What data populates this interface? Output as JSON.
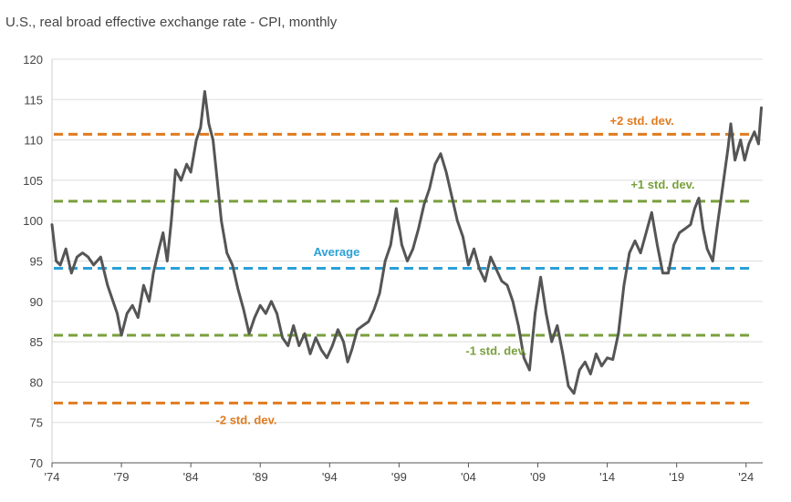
{
  "chart_data": {
    "type": "line",
    "title": "U.S., real broad effective exchange rate - CPI, monthly",
    "xlabel": "",
    "ylabel": "",
    "xlim": [
      1974,
      2025.2
    ],
    "ylim": [
      70,
      120
    ],
    "y_ticks": [
      70,
      75,
      80,
      85,
      90,
      95,
      100,
      105,
      110,
      115,
      120
    ],
    "x_ticks": [
      {
        "value": 1974,
        "label": "'74"
      },
      {
        "value": 1979,
        "label": "'79"
      },
      {
        "value": 1984,
        "label": "'84"
      },
      {
        "value": 1989,
        "label": "'89"
      },
      {
        "value": 1994,
        "label": "'94"
      },
      {
        "value": 1999,
        "label": "'99"
      },
      {
        "value": 2004,
        "label": "'04"
      },
      {
        "value": 2009,
        "label": "'09"
      },
      {
        "value": 2014,
        "label": "'14"
      },
      {
        "value": 2019,
        "label": "'19"
      },
      {
        "value": 2024,
        "label": "'24"
      }
    ],
    "grid": true,
    "series": [
      {
        "name": "Real broad effective exchange rate (CPI)",
        "color": "#555555",
        "points": [
          [
            1974.0,
            99.5
          ],
          [
            1974.3,
            95.0
          ],
          [
            1974.6,
            94.5
          ],
          [
            1975.0,
            96.5
          ],
          [
            1975.4,
            93.5
          ],
          [
            1975.8,
            95.5
          ],
          [
            1976.2,
            96.0
          ],
          [
            1976.6,
            95.5
          ],
          [
            1977.0,
            94.5
          ],
          [
            1977.5,
            95.5
          ],
          [
            1978.0,
            92.0
          ],
          [
            1978.3,
            90.5
          ],
          [
            1978.7,
            88.5
          ],
          [
            1979.0,
            85.8
          ],
          [
            1979.4,
            88.5
          ],
          [
            1979.8,
            89.5
          ],
          [
            1980.2,
            88.0
          ],
          [
            1980.6,
            92.0
          ],
          [
            1981.0,
            90.0
          ],
          [
            1981.3,
            93.5
          ],
          [
            1981.7,
            96.5
          ],
          [
            1982.0,
            98.5
          ],
          [
            1982.3,
            95.0
          ],
          [
            1982.6,
            100.0
          ],
          [
            1982.9,
            106.3
          ],
          [
            1983.3,
            105.0
          ],
          [
            1983.7,
            107.0
          ],
          [
            1984.0,
            106.0
          ],
          [
            1984.4,
            110.0
          ],
          [
            1984.7,
            111.5
          ],
          [
            1985.0,
            116.0
          ],
          [
            1985.3,
            112.0
          ],
          [
            1985.6,
            110.0
          ],
          [
            1985.9,
            105.0
          ],
          [
            1986.2,
            100.0
          ],
          [
            1986.6,
            96.0
          ],
          [
            1987.0,
            94.5
          ],
          [
            1987.4,
            91.5
          ],
          [
            1987.8,
            89.0
          ],
          [
            1988.2,
            86.0
          ],
          [
            1988.6,
            88.0
          ],
          [
            1989.0,
            89.5
          ],
          [
            1989.4,
            88.5
          ],
          [
            1989.8,
            90.0
          ],
          [
            1990.2,
            88.5
          ],
          [
            1990.6,
            85.5
          ],
          [
            1991.0,
            84.5
          ],
          [
            1991.4,
            87.0
          ],
          [
            1991.8,
            84.5
          ],
          [
            1992.2,
            86.0
          ],
          [
            1992.6,
            83.5
          ],
          [
            1993.0,
            85.5
          ],
          [
            1993.4,
            84.0
          ],
          [
            1993.8,
            83.0
          ],
          [
            1994.2,
            84.5
          ],
          [
            1994.6,
            86.5
          ],
          [
            1995.0,
            85.0
          ],
          [
            1995.3,
            82.5
          ],
          [
            1995.6,
            84.0
          ],
          [
            1996.0,
            86.5
          ],
          [
            1996.4,
            87.0
          ],
          [
            1996.8,
            87.5
          ],
          [
            1997.2,
            89.0
          ],
          [
            1997.6,
            91.0
          ],
          [
            1998.0,
            95.0
          ],
          [
            1998.4,
            97.0
          ],
          [
            1998.8,
            101.5
          ],
          [
            1999.2,
            97.0
          ],
          [
            1999.6,
            95.0
          ],
          [
            2000.0,
            96.5
          ],
          [
            2000.4,
            99.0
          ],
          [
            2000.8,
            102.0
          ],
          [
            2001.2,
            104.0
          ],
          [
            2001.6,
            107.0
          ],
          [
            2002.0,
            108.3
          ],
          [
            2002.4,
            106.0
          ],
          [
            2002.8,
            103.0
          ],
          [
            2003.2,
            100.0
          ],
          [
            2003.6,
            98.0
          ],
          [
            2004.0,
            94.5
          ],
          [
            2004.4,
            96.5
          ],
          [
            2004.8,
            94.0
          ],
          [
            2005.2,
            92.5
          ],
          [
            2005.6,
            95.5
          ],
          [
            2006.0,
            94.0
          ],
          [
            2006.4,
            92.5
          ],
          [
            2006.8,
            92.0
          ],
          [
            2007.2,
            90.0
          ],
          [
            2007.6,
            87.0
          ],
          [
            2008.0,
            83.0
          ],
          [
            2008.4,
            81.5
          ],
          [
            2008.8,
            88.5
          ],
          [
            2009.2,
            93.0
          ],
          [
            2009.6,
            88.5
          ],
          [
            2010.0,
            85.0
          ],
          [
            2010.4,
            87.0
          ],
          [
            2010.8,
            83.5
          ],
          [
            2011.2,
            79.5
          ],
          [
            2011.6,
            78.6
          ],
          [
            2012.0,
            81.5
          ],
          [
            2012.4,
            82.5
          ],
          [
            2012.8,
            81.0
          ],
          [
            2013.2,
            83.5
          ],
          [
            2013.6,
            82.0
          ],
          [
            2014.0,
            83.0
          ],
          [
            2014.4,
            82.8
          ],
          [
            2014.8,
            86.0
          ],
          [
            2015.2,
            92.0
          ],
          [
            2015.6,
            96.0
          ],
          [
            2016.0,
            97.5
          ],
          [
            2016.4,
            96.0
          ],
          [
            2016.8,
            98.5
          ],
          [
            2017.2,
            101.0
          ],
          [
            2017.6,
            97.0
          ],
          [
            2018.0,
            93.5
          ],
          [
            2018.4,
            93.5
          ],
          [
            2018.8,
            97.0
          ],
          [
            2019.2,
            98.5
          ],
          [
            2019.6,
            99.0
          ],
          [
            2020.0,
            99.5
          ],
          [
            2020.3,
            101.5
          ],
          [
            2020.6,
            102.8
          ],
          [
            2020.9,
            99.0
          ],
          [
            2021.2,
            96.5
          ],
          [
            2021.6,
            95.0
          ],
          [
            2021.9,
            99.0
          ],
          [
            2022.3,
            104.0
          ],
          [
            2022.7,
            109.0
          ],
          [
            2022.9,
            112.0
          ],
          [
            2023.2,
            107.5
          ],
          [
            2023.6,
            110.0
          ],
          [
            2023.9,
            107.5
          ],
          [
            2024.2,
            109.5
          ],
          [
            2024.6,
            111.0
          ],
          [
            2024.9,
            109.5
          ],
          [
            2025.1,
            114.0
          ]
        ]
      }
    ],
    "reference_lines": [
      {
        "label": "+2 std. dev.",
        "value": 110.7,
        "color": "#e07b1f",
        "label_x": 2016.5,
        "label_y": 111.9
      },
      {
        "label": "+1 std. dev.",
        "value": 102.4,
        "color": "#79a03c",
        "label_x": 2018.0,
        "label_y": 104.0
      },
      {
        "label": "Average",
        "value": 94.1,
        "color": "#2aa0d8",
        "label_x": 1994.5,
        "label_y": 95.6
      },
      {
        "label": "-1 std. dev.",
        "value": 85.8,
        "color": "#79a03c",
        "label_x": 2006.0,
        "label_y": 83.4
      },
      {
        "label": "-2 std. dev.",
        "value": 77.4,
        "color": "#e07b1f",
        "label_x": 1988.0,
        "label_y": 74.8
      }
    ]
  }
}
